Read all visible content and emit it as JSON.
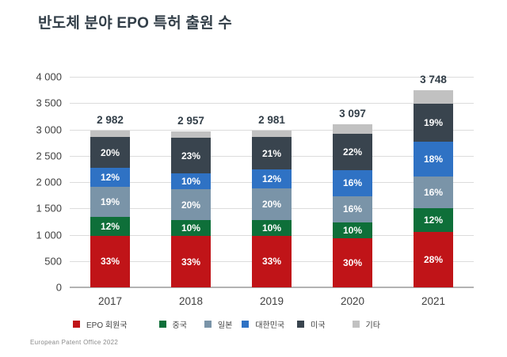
{
  "chart_data": {
    "type": "bar",
    "stacked": true,
    "title": "반도체 분야 EPO 특허 출원 수",
    "categories": [
      "2017",
      "2018",
      "2019",
      "2020",
      "2021"
    ],
    "totals": [
      2982,
      2957,
      2981,
      3097,
      3748
    ],
    "total_labels": [
      "2 982",
      "2 957",
      "2 981",
      "3 097",
      "3 748"
    ],
    "series": [
      {
        "name": "EPO 회원국",
        "color": "#c01418",
        "pct": [
          33,
          33,
          33,
          30,
          28
        ],
        "show_labels": true
      },
      {
        "name": "중국",
        "color": "#0e6f39",
        "pct": [
          12,
          10,
          10,
          10,
          12
        ],
        "show_labels": true
      },
      {
        "name": "일본",
        "color": "#7a94a8",
        "pct": [
          19,
          20,
          20,
          16,
          16
        ],
        "show_labels": true
      },
      {
        "name": "대한민국",
        "color": "#2f72c4",
        "pct": [
          12,
          10,
          12,
          16,
          18
        ],
        "show_labels": true
      },
      {
        "name": "미국",
        "color": "#39444e",
        "pct": [
          20,
          23,
          21,
          22,
          19
        ],
        "show_labels": true
      },
      {
        "name": "기타",
        "color": "#c1c1c1",
        "pct": [
          4,
          4,
          4,
          6,
          7
        ],
        "show_labels": false
      }
    ],
    "percent_suffix": "%",
    "y_ticks": [
      {
        "value": 0,
        "label": "0"
      },
      {
        "value": 500,
        "label": "500"
      },
      {
        "value": 1000,
        "label": "1 000"
      },
      {
        "value": 1500,
        "label": "1 500"
      },
      {
        "value": 2000,
        "label": "2 000"
      },
      {
        "value": 2500,
        "label": "2 500"
      },
      {
        "value": 3000,
        "label": "3 000"
      },
      {
        "value": 3500,
        "label": "3 500"
      },
      {
        "value": 4000,
        "label": "4 000"
      }
    ],
    "ylim": [
      0,
      4000
    ],
    "grid": true,
    "legend_position": "bottom",
    "source": "European Patent Office 2022"
  }
}
